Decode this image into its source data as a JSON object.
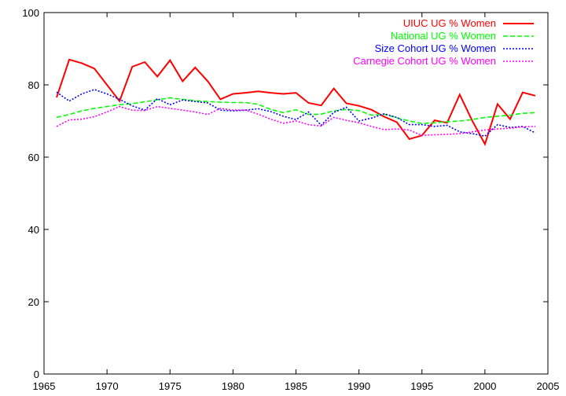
{
  "chart_data": {
    "type": "line",
    "title": "",
    "xlabel": "",
    "ylabel": "",
    "xlim": [
      1965,
      2005
    ],
    "ylim": [
      0,
      100
    ],
    "x_ticks": [
      1965,
      1970,
      1975,
      1980,
      1985,
      1990,
      1995,
      2000,
      2005
    ],
    "y_ticks": [
      0,
      20,
      40,
      60,
      80,
      100
    ],
    "grid": false,
    "legend_position": "top-right",
    "x": [
      1966,
      1967,
      1968,
      1969,
      1970,
      1971,
      1972,
      1973,
      1974,
      1975,
      1976,
      1977,
      1978,
      1979,
      1980,
      1981,
      1982,
      1983,
      1984,
      1985,
      1986,
      1987,
      1988,
      1989,
      1990,
      1991,
      1992,
      1993,
      1994,
      1995,
      1996,
      1997,
      1998,
      1999,
      2000,
      2001,
      2002,
      2003,
      2004
    ],
    "series": [
      {
        "name": "UIUC UG % Women",
        "color": "#ff0000",
        "dash": "solid",
        "values": [
          76.5,
          87.0,
          86.0,
          84.5,
          80.0,
          75.5,
          85.0,
          86.3,
          82.3,
          86.8,
          81.0,
          84.8,
          81.0,
          76.0,
          77.5,
          77.8,
          78.2,
          77.8,
          77.5,
          77.8,
          75.0,
          74.3,
          79.0,
          74.9,
          74.2,
          73.1,
          71.2,
          69.7,
          65.0,
          66.0,
          70.2,
          69.5,
          77.3,
          70.0,
          63.6,
          74.7,
          70.5,
          77.9,
          77.0
        ]
      },
      {
        "name": "National UG % Women",
        "color": "#00ff00",
        "dash": "dashed",
        "values": [
          71.0,
          71.8,
          72.8,
          73.5,
          74.0,
          74.5,
          74.8,
          75.3,
          75.9,
          76.4,
          76.0,
          75.6,
          75.4,
          75.2,
          75.1,
          75.1,
          74.6,
          73.2,
          72.3,
          73.1,
          71.8,
          71.9,
          72.8,
          73.2,
          72.9,
          71.6,
          71.9,
          70.9,
          70.0,
          69.3,
          69.5,
          69.8,
          70.0,
          70.4,
          71.0,
          71.3,
          71.6,
          72.1,
          72.3
        ]
      },
      {
        "name": "Size Cohort UG % Women",
        "color": "#0000ff",
        "dash": "dotted",
        "values": [
          78.0,
          75.5,
          77.5,
          78.7,
          77.5,
          76.0,
          74.2,
          73.0,
          76.2,
          74.5,
          75.8,
          75.4,
          75.0,
          73.0,
          72.8,
          73.0,
          73.4,
          72.6,
          71.3,
          70.4,
          72.5,
          68.8,
          72.4,
          73.8,
          70.0,
          70.8,
          72.0,
          71.0,
          69.0,
          69.0,
          68.5,
          68.8,
          67.0,
          66.5,
          65.8,
          69.0,
          68.2,
          68.5,
          66.7
        ]
      },
      {
        "name": "Carnegie Cohort UG % Women",
        "color": "#ff00ff",
        "dash": "dotted",
        "values": [
          68.5,
          70.3,
          70.5,
          71.2,
          72.5,
          74.0,
          73.0,
          72.9,
          74.0,
          73.5,
          73.0,
          72.5,
          71.8,
          73.5,
          73.0,
          73.0,
          71.9,
          70.5,
          69.4,
          70.0,
          69.0,
          68.6,
          71.0,
          70.2,
          69.5,
          68.5,
          67.6,
          67.8,
          67.5,
          66.0,
          66.2,
          66.3,
          66.5,
          67.0,
          67.5,
          67.8,
          68.0,
          68.4,
          68.5
        ]
      }
    ]
  }
}
